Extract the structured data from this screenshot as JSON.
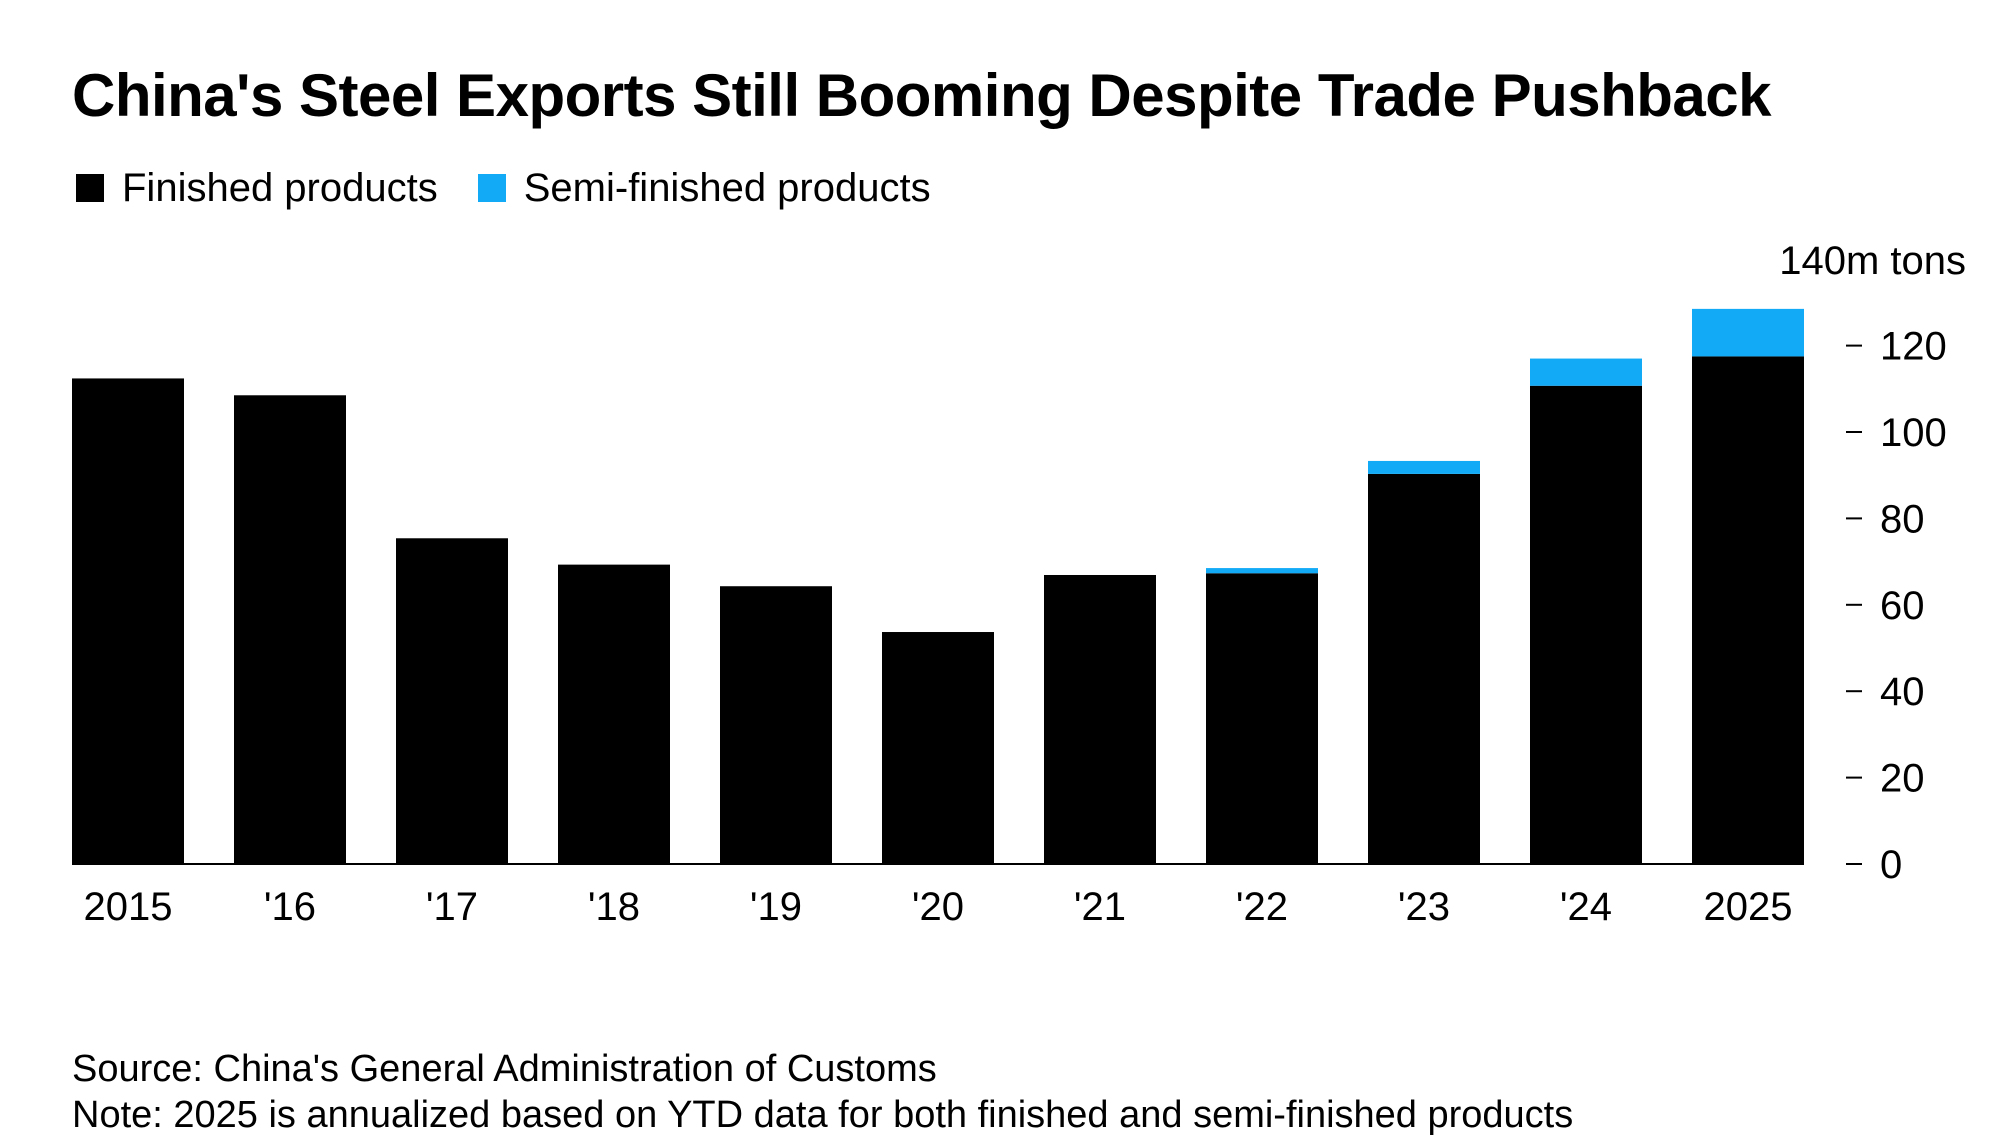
{
  "chart_data": {
    "type": "bar",
    "stacked": true,
    "title": "China's Steel Exports Still Booming Despite Trade Pushback",
    "unit_label": "140m tons",
    "categories": [
      "2015",
      "'16",
      "'17",
      "'18",
      "'19",
      "'20",
      "'21",
      "'22",
      "'23",
      "'24",
      "2025"
    ],
    "series": [
      {
        "name": "Finished products",
        "color": "#000000",
        "values": [
          112.4,
          108.5,
          75.4,
          69.3,
          64.3,
          53.7,
          66.9,
          67.3,
          90.3,
          110.7,
          117.5
        ]
      },
      {
        "name": "Semi-finished products",
        "color": "#12aaf6",
        "values": [
          0,
          0,
          0,
          0,
          0,
          0,
          0,
          1.2,
          3.0,
          6.3,
          11.0
        ]
      }
    ],
    "yticks": [
      0,
      20,
      40,
      60,
      80,
      100,
      120
    ],
    "ylim": [
      0,
      140
    ],
    "axis_position": "right",
    "grid": false,
    "legend_position": "top-left"
  },
  "footer": {
    "source": "Source: China's General Administration of Customs",
    "note": "Note: 2025 is annualized based on YTD data for both finished and semi-finished products"
  }
}
